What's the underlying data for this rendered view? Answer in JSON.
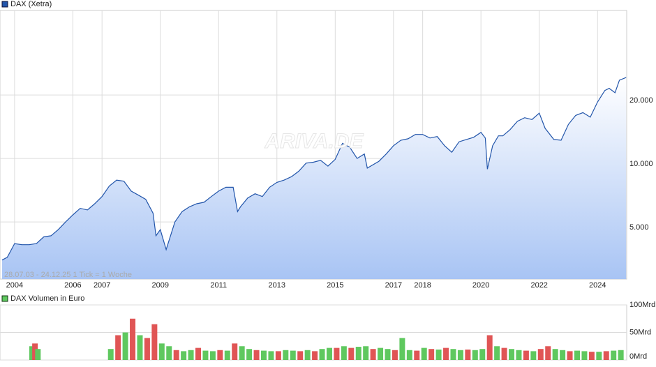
{
  "chart_data": [
    {
      "type": "line",
      "title": "DAX (Xetra)",
      "color": "#2255aa",
      "area_color": "#a8c4f4",
      "log_scale": true,
      "grid": true,
      "subtitle": "28.07.03 - 24.12.25    1 Tick = 1 Woche",
      "watermark": "ARIVA.DE",
      "x": [
        2003.57,
        2003.75,
        2004.0,
        2004.25,
        2004.5,
        2004.75,
        2005.0,
        2005.25,
        2005.5,
        2005.75,
        2006.0,
        2006.25,
        2006.5,
        2006.75,
        2007.0,
        2007.25,
        2007.5,
        2007.75,
        2008.0,
        2008.25,
        2008.5,
        2008.75,
        2008.85,
        2009.0,
        2009.2,
        2009.5,
        2009.75,
        2010.0,
        2010.25,
        2010.5,
        2010.75,
        2011.0,
        2011.25,
        2011.5,
        2011.65,
        2011.75,
        2012.0,
        2012.25,
        2012.5,
        2012.75,
        2013.0,
        2013.25,
        2013.5,
        2013.75,
        2014.0,
        2014.25,
        2014.5,
        2014.75,
        2015.0,
        2015.25,
        2015.5,
        2015.75,
        2016.0,
        2016.1,
        2016.5,
        2016.75,
        2017.0,
        2017.25,
        2017.5,
        2017.75,
        2018.0,
        2018.25,
        2018.5,
        2018.75,
        2019.0,
        2019.25,
        2019.5,
        2019.75,
        2020.0,
        2020.15,
        2020.22,
        2020.4,
        2020.6,
        2020.75,
        2021.0,
        2021.25,
        2021.5,
        2021.75,
        2022.0,
        2022.2,
        2022.5,
        2022.75,
        2023.0,
        2023.25,
        2023.5,
        2023.75,
        2024.0,
        2024.25,
        2024.4,
        2024.6,
        2024.75,
        2024.98
      ],
      "values": [
        3300,
        3400,
        3950,
        3900,
        3900,
        3950,
        4250,
        4300,
        4600,
        5000,
        5400,
        5800,
        5700,
        6100,
        6600,
        7400,
        7900,
        7800,
        7000,
        6700,
        6400,
        5500,
        4300,
        4600,
        3700,
        5000,
        5600,
        5900,
        6100,
        6200,
        6600,
        7000,
        7300,
        7300,
        5600,
        5900,
        6500,
        6800,
        6600,
        7300,
        7700,
        7900,
        8200,
        8700,
        9500,
        9600,
        9800,
        9200,
        9900,
        11800,
        11300,
        10000,
        10500,
        9000,
        9700,
        10500,
        11500,
        12200,
        12400,
        13000,
        13000,
        12500,
        12700,
        11500,
        10700,
        12000,
        12300,
        12600,
        13300,
        12500,
        8900,
        11500,
        12800,
        12800,
        13700,
        15000,
        15600,
        15300,
        16400,
        13900,
        12300,
        12200,
        14500,
        16000,
        16500,
        15700,
        18500,
        21000,
        21500,
        20500,
        23500,
        24200
      ],
      "xlim": [
        2003.5,
        2025.0
      ],
      "xticks": [
        2004,
        2006,
        2007,
        2009,
        2011,
        2013,
        2015,
        2017,
        2018,
        2020,
        2022,
        2024
      ],
      "ylim": [
        2680,
        50300
      ],
      "yticks": [
        {
          "value": 5000,
          "label": "5.000"
        },
        {
          "value": 10000,
          "label": "10.000"
        },
        {
          "value": 20000,
          "label": "20.000"
        }
      ]
    },
    {
      "type": "bar",
      "title": "DAX Volumen in Euro",
      "x": [
        2004.6,
        2004.7,
        2004.8,
        2007.3,
        2007.55,
        2007.8,
        2008.05,
        2008.3,
        2008.55,
        2008.8,
        2009.05,
        2009.3,
        2009.55,
        2009.8,
        2010.05,
        2010.3,
        2010.55,
        2010.8,
        2011.05,
        2011.3,
        2011.55,
        2011.8,
        2012.05,
        2012.3,
        2012.55,
        2012.8,
        2013.05,
        2013.3,
        2013.55,
        2013.8,
        2014.05,
        2014.3,
        2014.55,
        2014.8,
        2015.05,
        2015.3,
        2015.55,
        2015.8,
        2016.05,
        2016.3,
        2016.55,
        2016.8,
        2017.05,
        2017.3,
        2017.55,
        2017.8,
        2018.05,
        2018.3,
        2018.55,
        2018.8,
        2019.05,
        2019.3,
        2019.55,
        2019.8,
        2020.05,
        2020.3,
        2020.55,
        2020.8,
        2021.05,
        2021.3,
        2021.55,
        2021.8,
        2022.05,
        2022.3,
        2022.55,
        2022.8,
        2023.05,
        2023.3,
        2023.55,
        2023.8,
        2024.05,
        2024.3,
        2024.55,
        2024.8
      ],
      "values": [
        25,
        30,
        20,
        20,
        45,
        50,
        75,
        45,
        40,
        65,
        30,
        25,
        18,
        16,
        18,
        22,
        17,
        16,
        18,
        17,
        30,
        25,
        20,
        18,
        17,
        16,
        16,
        18,
        17,
        16,
        18,
        16,
        20,
        22,
        22,
        25,
        22,
        24,
        25,
        20,
        22,
        20,
        18,
        40,
        18,
        17,
        22,
        20,
        19,
        22,
        20,
        18,
        19,
        18,
        20,
        45,
        25,
        22,
        20,
        18,
        17,
        16,
        20,
        25,
        20,
        18,
        16,
        17,
        16,
        15,
        15,
        16,
        17,
        18
      ],
      "colors": [
        "#5fc85f",
        "#e05555",
        "#5fc85f",
        "#5fc85f",
        "#e05555",
        "#5fc85f",
        "#e05555",
        "#5fc85f",
        "#e05555",
        "#e05555",
        "#5fc85f",
        "#5fc85f",
        "#e05555",
        "#5fc85f",
        "#5fc85f",
        "#e05555",
        "#5fc85f",
        "#5fc85f",
        "#e05555",
        "#5fc85f",
        "#e05555",
        "#5fc85f",
        "#5fc85f",
        "#e05555",
        "#5fc85f",
        "#5fc85f",
        "#e05555",
        "#5fc85f",
        "#5fc85f",
        "#e05555",
        "#5fc85f",
        "#e05555",
        "#5fc85f",
        "#5fc85f",
        "#e05555",
        "#5fc85f",
        "#e05555",
        "#5fc85f",
        "#5fc85f",
        "#e05555",
        "#5fc85f",
        "#5fc85f",
        "#e05555",
        "#5fc85f",
        "#5fc85f",
        "#e05555",
        "#5fc85f",
        "#e05555",
        "#5fc85f",
        "#e05555",
        "#5fc85f",
        "#5fc85f",
        "#e05555",
        "#5fc85f",
        "#5fc85f",
        "#e05555",
        "#5fc85f",
        "#e05555",
        "#5fc85f",
        "#5fc85f",
        "#e05555",
        "#5fc85f",
        "#e05555",
        "#e05555",
        "#5fc85f",
        "#5fc85f",
        "#e05555",
        "#5fc85f",
        "#5fc85f",
        "#e05555",
        "#5fc85f",
        "#e05555",
        "#5fc85f",
        "#5fc85f"
      ],
      "xlim": [
        2003.5,
        2025.0
      ],
      "ylim": [
        0,
        100
      ],
      "yticks": [
        {
          "value": 0,
          "label": "0Mrd"
        },
        {
          "value": 50,
          "label": "50Mrd"
        },
        {
          "value": 100,
          "label": "100Mrd"
        }
      ]
    }
  ]
}
